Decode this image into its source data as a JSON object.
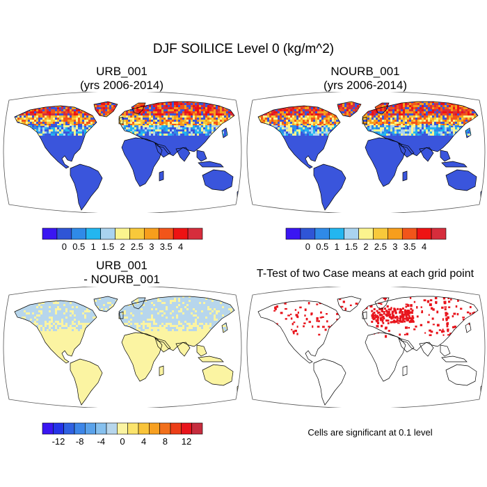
{
  "figure": {
    "title": "DJF SOILICE Level 0 (kg/m^2)"
  },
  "colors": {
    "land_blue": "#3a55dc",
    "diff_yellow": "#fbf4a2",
    "diff_lightblue": "#b7d6ec",
    "sig_red": "#e8141c",
    "coast": "#000000",
    "frame": "#555555"
  },
  "panels": [
    {
      "title_line1": "URB_001",
      "title_line2": "(yrs 2006-2014)",
      "type": "field"
    },
    {
      "title_line1": "NOURB_001",
      "title_line2": "(yrs 2006-2014)",
      "type": "field"
    },
    {
      "title_line1": "URB_001",
      "title_line2": "- NOURB_001",
      "type": "difference"
    },
    {
      "title_line1": "T-Test of two Case means at each grid point",
      "title_line2": "",
      "type": "significance",
      "note": "Cells are significant at 0.1 level"
    }
  ],
  "chart_data": [
    {
      "type": "heatmap",
      "title": "URB_001",
      "subtitle": "(yrs 2006-2014)",
      "projection": "Robinson",
      "colorbar": {
        "tick_labels": [
          "0",
          "0.5",
          "1",
          "1.5",
          "2",
          "2.5",
          "3",
          "3.5",
          "4"
        ],
        "boundaries": [
          0,
          0.5,
          1,
          1.5,
          2,
          2.5,
          3,
          3.5,
          4
        ],
        "colors": [
          "#3a16f2",
          "#2f55d6",
          "#2f8ae8",
          "#23b6f0",
          "#a9d3ef",
          "#fbf48e",
          "#f8c93b",
          "#f79e1c",
          "#f2551a",
          "#ee1313",
          "#d62d3c"
        ]
      }
    },
    {
      "type": "heatmap",
      "title": "NOURB_001",
      "subtitle": "(yrs 2006-2014)",
      "projection": "Robinson",
      "colorbar": {
        "tick_labels": [
          "0",
          "0.5",
          "1",
          "1.5",
          "2",
          "2.5",
          "3",
          "3.5",
          "4"
        ],
        "boundaries": [
          0,
          0.5,
          1,
          1.5,
          2,
          2.5,
          3,
          3.5,
          4
        ],
        "colors": [
          "#3a16f2",
          "#2f55d6",
          "#2f8ae8",
          "#23b6f0",
          "#a9d3ef",
          "#fbf48e",
          "#f8c93b",
          "#f79e1c",
          "#f2551a",
          "#ee1313",
          "#d62d3c"
        ]
      }
    },
    {
      "type": "heatmap",
      "title": "URB_001",
      "subtitle": "- NOURB_001",
      "projection": "Robinson",
      "colorbar": {
        "tick_labels": [
          "-12",
          "-8",
          "-4",
          "0",
          "4",
          "8",
          "12"
        ],
        "boundaries": [
          -14,
          -12,
          -10,
          -8,
          -6,
          -4,
          -2,
          0,
          2,
          4,
          6,
          8,
          10,
          12,
          14
        ],
        "colors": [
          "#3a16f2",
          "#2433e8",
          "#2f61e2",
          "#3d86e8",
          "#5aa2ea",
          "#86c0ee",
          "#b7d6ec",
          "#fbf4a2",
          "#fbe46c",
          "#f9c43a",
          "#f7a021",
          "#f2701c",
          "#ec3e18",
          "#e8141c",
          "#c62d3e"
        ]
      }
    },
    {
      "type": "heatmap",
      "title": "T-Test of two Case means at each grid point",
      "projection": "Robinson",
      "annotation": "Cells are significant at 0.1 level"
    }
  ]
}
